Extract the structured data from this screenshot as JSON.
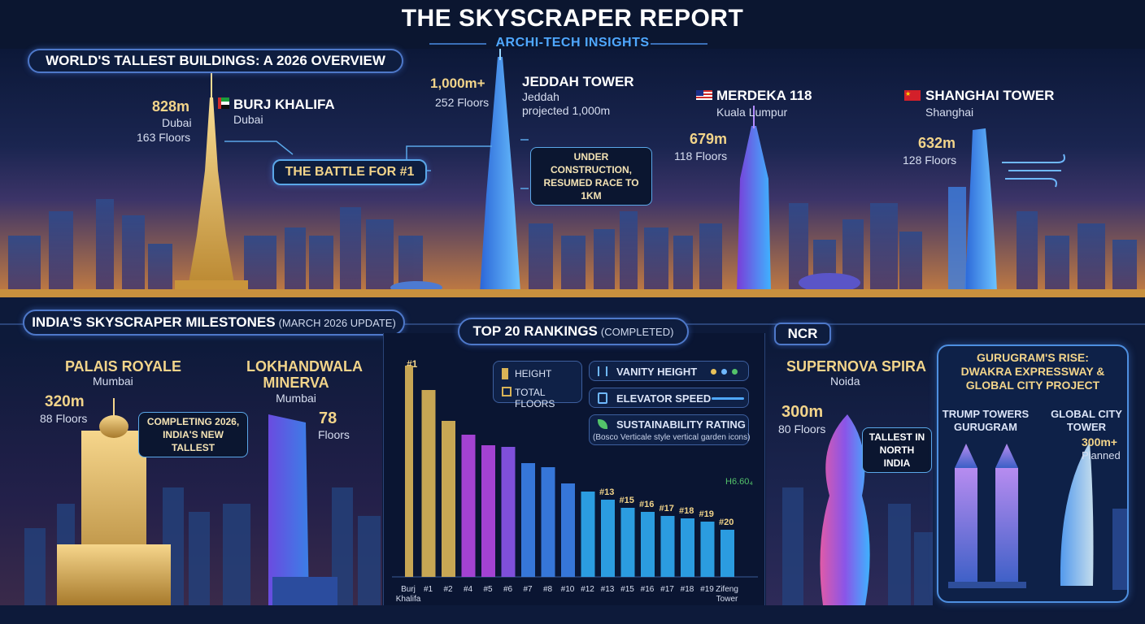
{
  "header": {
    "title": "THE SKYSCRAPER REPORT",
    "subtitle": "ARCHI-TECH INSIGHTS"
  },
  "world": {
    "section_title": "WORLD'S TALLEST BUILDINGS: A 2026 OVERVIEW",
    "battle_label": "THE BATTLE FOR #1",
    "burj": {
      "height": "828m",
      "name": "BURJ KHALIFA",
      "city": "Dubai",
      "city2": "Dubai",
      "floors": "163 Floors"
    },
    "jeddah": {
      "height": "1,000m+",
      "name": "JEDDAH TOWER",
      "floors": "252 Floors",
      "city": "Jeddah",
      "note": "projected 1,000m",
      "callout_1": "UNDER CONSTRUCTION,",
      "callout_2": "RESUMED RACE TO 1KM"
    },
    "merdeka": {
      "name": "MERDEKA 118",
      "city": "Kuala Lumpur",
      "height": "679m",
      "floors": "118 Floors"
    },
    "shanghai": {
      "name": "SHANGHAI TOWER",
      "city": "Shanghai",
      "height": "632m",
      "floors": "128 Floors"
    }
  },
  "india": {
    "section_title": "INDIA'S SKYSCRAPER MILESTONES",
    "section_note": "(MARCH 2026 UPDATE)",
    "palais": {
      "name": "PALAIS ROYALE",
      "city": "Mumbai",
      "height": "320m",
      "floors": "88 Floors",
      "callout_1": "COMPLETING 2026,",
      "callout_2": "INDIA'S NEW TALLEST"
    },
    "lokhandwala": {
      "name_1": "LOKHANDWALA",
      "name_2": "MINERVA",
      "city": "Mumbai",
      "floors_num": "78",
      "floors_label": "Floors"
    }
  },
  "rankings": {
    "title": "TOP 20 RANKINGS",
    "title_note": "(COMPLETED)",
    "legend": {
      "height": "HEIGHT",
      "total_floors": "TOTAL FLOORS",
      "vanity": "VANITY HEIGHT",
      "elevator": "ELEVATOR SPEED",
      "sustain": "SUSTAINABILITY RATING",
      "sustain_note": "(Bosco Verticale style vertical garden icons)"
    },
    "top_rank": "#1",
    "side_label": "H6.60₄",
    "top_labels": [
      "#13",
      "#15",
      "#16",
      "#17",
      "#18",
      "#19",
      "#20"
    ],
    "x_labels": [
      "Burj Khalifa",
      "#1",
      "#2",
      "#4",
      "#5",
      "#6",
      "#7",
      "#8",
      "#10",
      "#12",
      "#13",
      "#15",
      "#16",
      "#17",
      "#18",
      "#19",
      "Zifeng Tower"
    ],
    "colors": {
      "gold": "#d8b357",
      "purple": "#b147e0",
      "violet": "#8a55e8",
      "blue": "#3b7fe6",
      "cyan": "#2fa8ef"
    }
  },
  "ncr": {
    "tag": "NCR",
    "name": "SUPERNOVA SPIRA",
    "city": "Noida",
    "height": "300m",
    "floors": "80 Floors",
    "callout_1": "TALLEST IN",
    "callout_2": "NORTH INDIA"
  },
  "gurugram": {
    "title_1": "GURUGRAM'S RISE:",
    "title_2": "DWAKRA EXPRESSWAY &",
    "title_3": "GLOBAL CITY PROJECT",
    "trump_1": "TRUMP TOWERS",
    "trump_2": "GURUGRAM",
    "global_1": "GLOBAL CITY",
    "global_2": "TOWER",
    "global_height": "300m+",
    "global_status": "Planned"
  }
}
